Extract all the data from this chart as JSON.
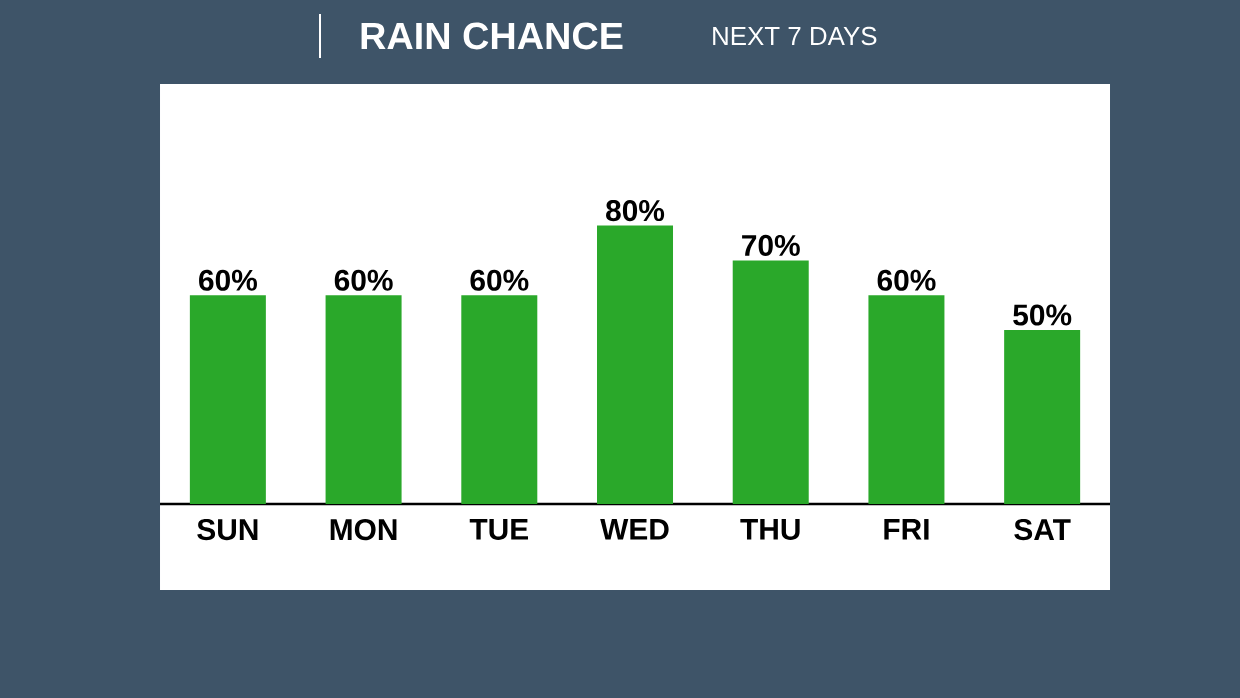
{
  "chart_data": {
    "type": "bar",
    "title": "RAIN CHANCE",
    "subtitle": "NEXT 7 DAYS",
    "categories": [
      "SUN",
      "MON",
      "TUE",
      "WED",
      "THU",
      "FRI",
      "SAT"
    ],
    "values": [
      60,
      60,
      60,
      80,
      70,
      60,
      50
    ],
    "value_labels": [
      "60%",
      "60%",
      "60%",
      "80%",
      "70%",
      "60%",
      "50%"
    ],
    "color": "#2aa82a"
  }
}
